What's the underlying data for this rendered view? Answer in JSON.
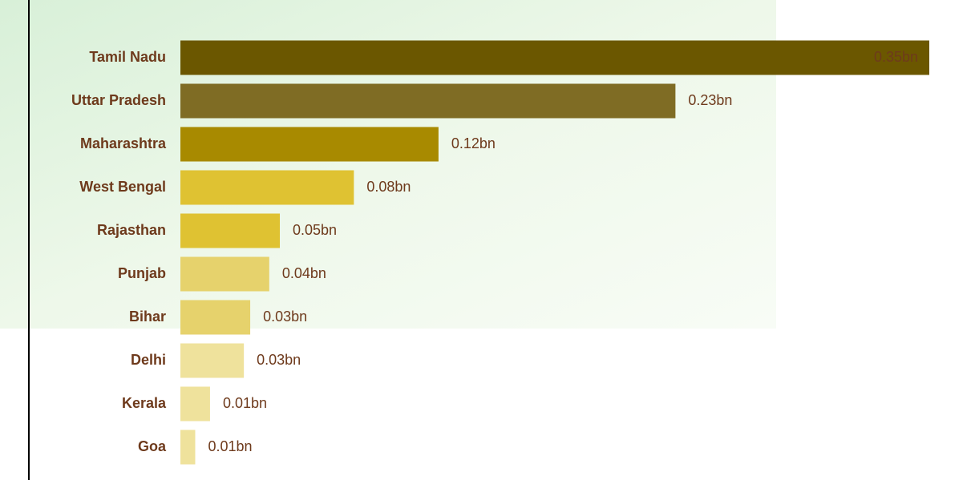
{
  "chart_data": {
    "type": "bar",
    "orientation": "horizontal",
    "categories": [
      "Tamil Nadu",
      "Uttar Pradesh",
      "Maharashtra",
      "West Bengal",
      "Rajasthan",
      "Punjab",
      "Bihar",
      "Delhi",
      "Kerala",
      "Goa"
    ],
    "values": [
      0.354,
      0.234,
      0.122,
      0.082,
      0.047,
      0.042,
      0.033,
      0.03,
      0.014,
      0.007
    ],
    "value_labels": [
      "0.35bn",
      "0.23bn",
      "0.12bn",
      "0.08bn",
      "0.05bn",
      "0.04bn",
      "0.03bn",
      "0.03bn",
      "0.01bn",
      "0.01bn"
    ],
    "colors": [
      "#6b5700",
      "#7f6c24",
      "#a88a00",
      "#dfc232",
      "#dfc232",
      "#e6d26c",
      "#e6d26c",
      "#efe29c",
      "#efe29c",
      "#efe29c"
    ]
  }
}
